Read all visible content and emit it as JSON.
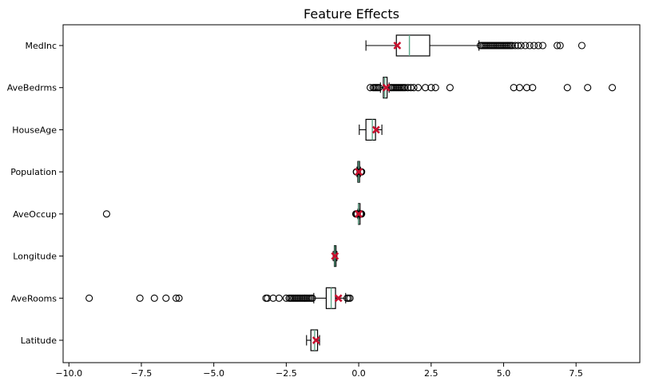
{
  "chart_data": {
    "type": "boxplot",
    "orientation": "horizontal",
    "title": "Feature Effects",
    "xlabel": "",
    "ylabel": "",
    "xlim": [
      -10.2,
      9.7
    ],
    "xticks": [
      -10.0,
      -7.5,
      -5.0,
      -2.5,
      0.0,
      2.5,
      5.0,
      7.5
    ],
    "xtick_labels": [
      "−10.0",
      "−7.5",
      "−5.0",
      "−2.5",
      "0.0",
      "2.5",
      "5.0",
      "7.5"
    ],
    "grid": false,
    "colors": {
      "box": "#000000",
      "median": "#5fa88a",
      "mean": "#c8102e",
      "flier": "#000000"
    },
    "categories": [
      "MedInc",
      "AveBedrms",
      "HouseAge",
      "Population",
      "AveOccup",
      "Longitude",
      "AveRooms",
      "Latitude"
    ],
    "boxes": [
      {
        "label": "MedInc",
        "whislo": 0.25,
        "q1": 1.3,
        "median": 1.75,
        "q3": 2.45,
        "whishi": 4.15,
        "mean": 1.33,
        "fliers": [
          4.2,
          4.25,
          4.3,
          4.35,
          4.4,
          4.45,
          4.5,
          4.55,
          4.6,
          4.65,
          4.7,
          4.75,
          4.8,
          4.85,
          4.9,
          4.95,
          5.0,
          5.05,
          5.1,
          5.15,
          5.2,
          5.25,
          5.3,
          5.4,
          5.5,
          5.6,
          5.75,
          5.9,
          6.05,
          6.2,
          6.35,
          6.85,
          6.95,
          7.7
        ]
      },
      {
        "label": "AveBedrms",
        "whislo": 0.75,
        "q1": 0.85,
        "median": 0.9,
        "q3": 0.98,
        "whishi": 1.05,
        "mean": 0.95,
        "fliers": [
          0.4,
          0.5,
          0.55,
          0.6,
          0.65,
          0.7,
          1.1,
          1.15,
          1.2,
          1.25,
          1.3,
          1.35,
          1.4,
          1.45,
          1.5,
          1.55,
          1.6,
          1.7,
          1.8,
          1.9,
          2.05,
          2.3,
          2.5,
          2.65,
          3.15,
          5.35,
          5.55,
          5.8,
          6.0,
          7.2,
          7.9,
          8.75
        ]
      },
      {
        "label": "HouseAge",
        "whislo": 0.02,
        "q1": 0.25,
        "median": 0.47,
        "q3": 0.58,
        "whishi": 0.8,
        "mean": 0.6,
        "fliers": []
      },
      {
        "label": "Population",
        "whislo": -0.06,
        "q1": -0.03,
        "median": 0.0,
        "q3": 0.03,
        "whishi": 0.06,
        "mean": 0.0,
        "fliers": [
          -0.08,
          -0.07,
          0.07,
          0.08,
          0.1
        ]
      },
      {
        "label": "AveOccup",
        "whislo": -0.03,
        "q1": -0.01,
        "median": 0.0,
        "q3": 0.01,
        "whishi": 0.03,
        "mean": 0.0,
        "fliers": [
          -8.7,
          -0.1,
          -0.08,
          -0.06,
          -0.05,
          0.05,
          0.06,
          0.08,
          0.1
        ]
      },
      {
        "label": "Longitude",
        "whislo": -0.88,
        "q1": -0.84,
        "median": -0.82,
        "q3": -0.79,
        "whishi": -0.75,
        "mean": -0.82,
        "fliers": []
      },
      {
        "label": "AveRooms",
        "whislo": -1.55,
        "q1": -1.12,
        "median": -0.95,
        "q3": -0.8,
        "whishi": -0.45,
        "mean": -0.7,
        "fliers": [
          -9.3,
          -7.55,
          -7.05,
          -6.65,
          -6.3,
          -6.2,
          -3.2,
          -3.15,
          -2.95,
          -2.75,
          -2.5,
          -2.4,
          -2.35,
          -2.3,
          -2.25,
          -2.2,
          -2.15,
          -2.1,
          -2.05,
          -2.0,
          -1.95,
          -1.9,
          -1.85,
          -1.8,
          -1.75,
          -1.7,
          -1.65,
          -1.6,
          -0.4,
          -0.35,
          -0.3
        ]
      },
      {
        "label": "Latitude",
        "whislo": -1.8,
        "q1": -1.65,
        "median": -1.52,
        "q3": -1.42,
        "whishi": -1.35,
        "mean": -1.47,
        "fliers": []
      }
    ]
  }
}
